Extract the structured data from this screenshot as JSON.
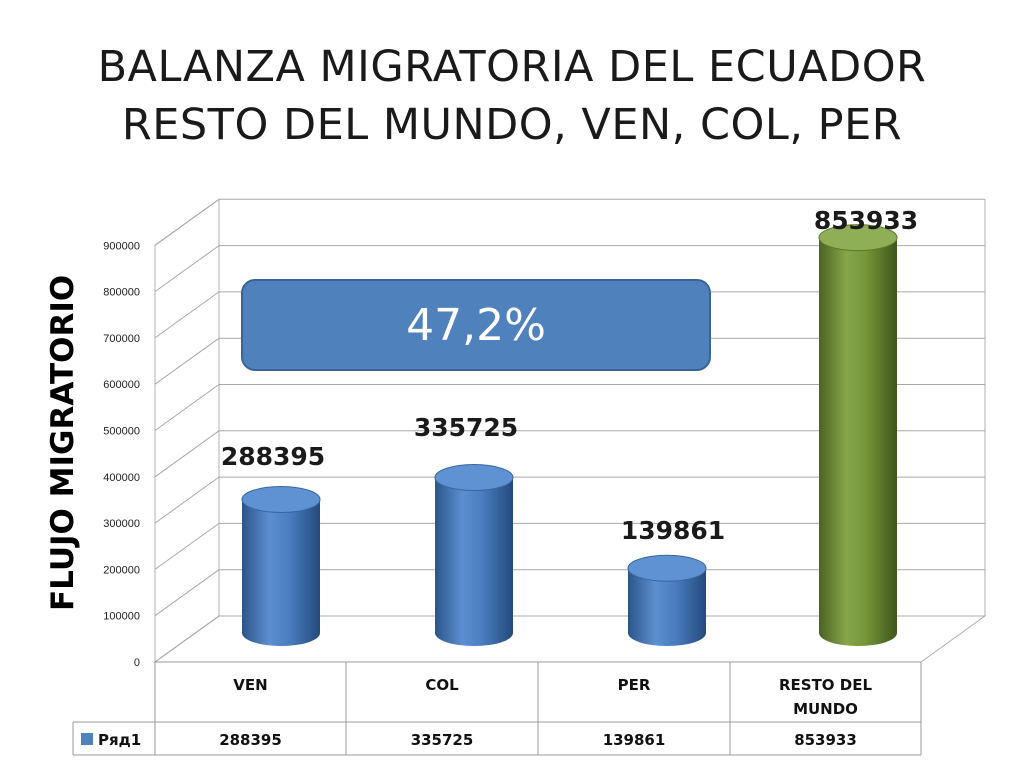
{
  "title_lines": [
    "BALANZA MIGRATORIA DEL ECUADOR",
    "RESTO DEL MUNDO, VEN, COL, PER"
  ],
  "callout": "47,2%",
  "colors": {
    "blue": "#4f81bd",
    "green": "#77933c"
  },
  "chart_data": {
    "type": "bar",
    "title": "",
    "ylabel": "FLUJO MIGRATORIO",
    "xlabel": "",
    "ylim": [
      0,
      900000
    ],
    "yticks": [
      "0",
      "100000",
      "200000",
      "300000",
      "400000",
      "500000",
      "600000",
      "700000",
      "800000",
      "900000"
    ],
    "categories": [
      "VEN",
      "COL",
      "PER",
      "RESTO DEL MUNDO"
    ],
    "categories_display": [
      [
        "VEN"
      ],
      [
        "COL"
      ],
      [
        "PER"
      ],
      [
        "RESTO DEL",
        "MUNDO"
      ]
    ],
    "series": [
      {
        "name": "Ряд1",
        "values": [
          288395,
          335725,
          139861,
          853933
        ]
      }
    ],
    "data_labels": [
      "288395",
      "335725",
      "139861",
      "853933"
    ],
    "table": {
      "row_label": "Ряд1",
      "cells": [
        "288395",
        "335725",
        "139861",
        "853933"
      ]
    },
    "grid": true,
    "legend": "data-table"
  }
}
